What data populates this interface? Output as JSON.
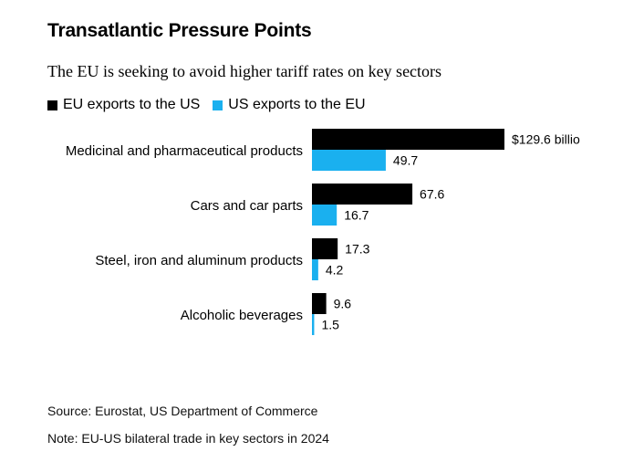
{
  "header": {
    "title": "Transatlantic Pressure Points",
    "subtitle": "The EU is seeking to avoid higher tariff rates on key sectors"
  },
  "legend": [
    {
      "label": "EU exports to the US",
      "color": "#000000"
    },
    {
      "label": "US exports to the EU",
      "color": "#1ab0ef"
    }
  ],
  "chart_data": {
    "type": "bar",
    "orientation": "horizontal",
    "title": "Transatlantic Pressure Points",
    "subtitle": "The EU is seeking to avoid higher tariff rates on key sectors",
    "categories": [
      "Medicinal and pharmaceutical products",
      "Cars and car parts",
      "Steel, iron and aluminum products",
      "Alcoholic beverages"
    ],
    "series": [
      {
        "name": "EU exports to the US",
        "color": "#000000",
        "values": [
          129.6,
          67.6,
          17.3,
          9.6
        ],
        "labels": [
          "$129.6 billio",
          "67.6",
          "17.3",
          "9.6"
        ]
      },
      {
        "name": "US exports to the EU",
        "color": "#1ab0ef",
        "values": [
          49.7,
          16.7,
          4.2,
          1.5
        ],
        "labels": [
          "49.7",
          "16.7",
          "4.2",
          "1.5"
        ]
      }
    ],
    "unit": "$ billion",
    "xlim": [
      0,
      129.6
    ],
    "grid": false
  },
  "footer": {
    "source": "Source: Eurostat, US Department of Commerce",
    "note": "Note: EU-US bilateral trade in key sectors in 2024"
  }
}
